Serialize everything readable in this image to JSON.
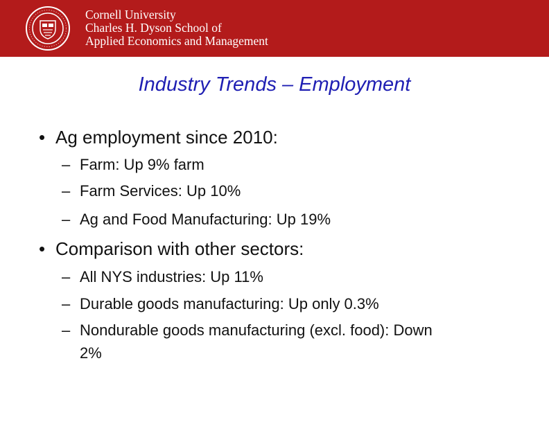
{
  "header": {
    "background_color": "#b31b1b",
    "seal": "cornell-seal-logo",
    "org_lines": [
      "Cornell University",
      "Charles H. Dyson School of",
      "Applied Economics and Management"
    ]
  },
  "slide": {
    "title": "Industry Trends – Employment",
    "title_color": "#1f1fb3",
    "bullets": [
      {
        "text": "Ag employment since 2010:",
        "subitems": [
          "Farm: Up 9% farm",
          "Farm Services: Up 10%",
          "Ag and Food Manufacturing: Up 19%"
        ]
      },
      {
        "text": "Comparison with other sectors:",
        "subitems": [
          "All NYS industries: Up 11%",
          "Durable goods manufacturing: Up only 0.3%",
          "Nondurable goods manufacturing (excl. food): Down",
          "2%"
        ]
      }
    ]
  }
}
